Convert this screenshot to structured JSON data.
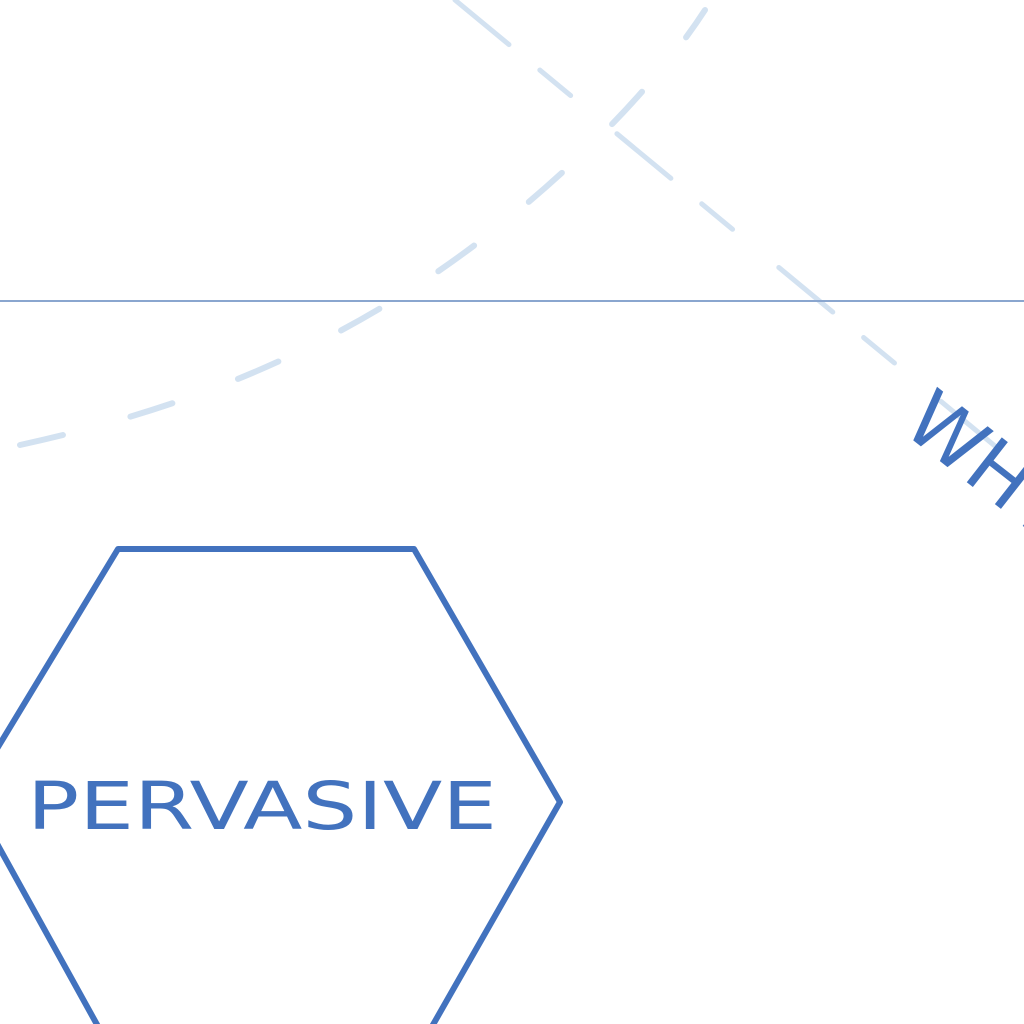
{
  "diagram": {
    "hexagon_label": "PERVASIVE",
    "angled_label": "WHY"
  },
  "colors": {
    "background": "#ffffff",
    "ink": "#4272be",
    "divider": "#8aa6cf",
    "dash": "#d3e2f1"
  }
}
